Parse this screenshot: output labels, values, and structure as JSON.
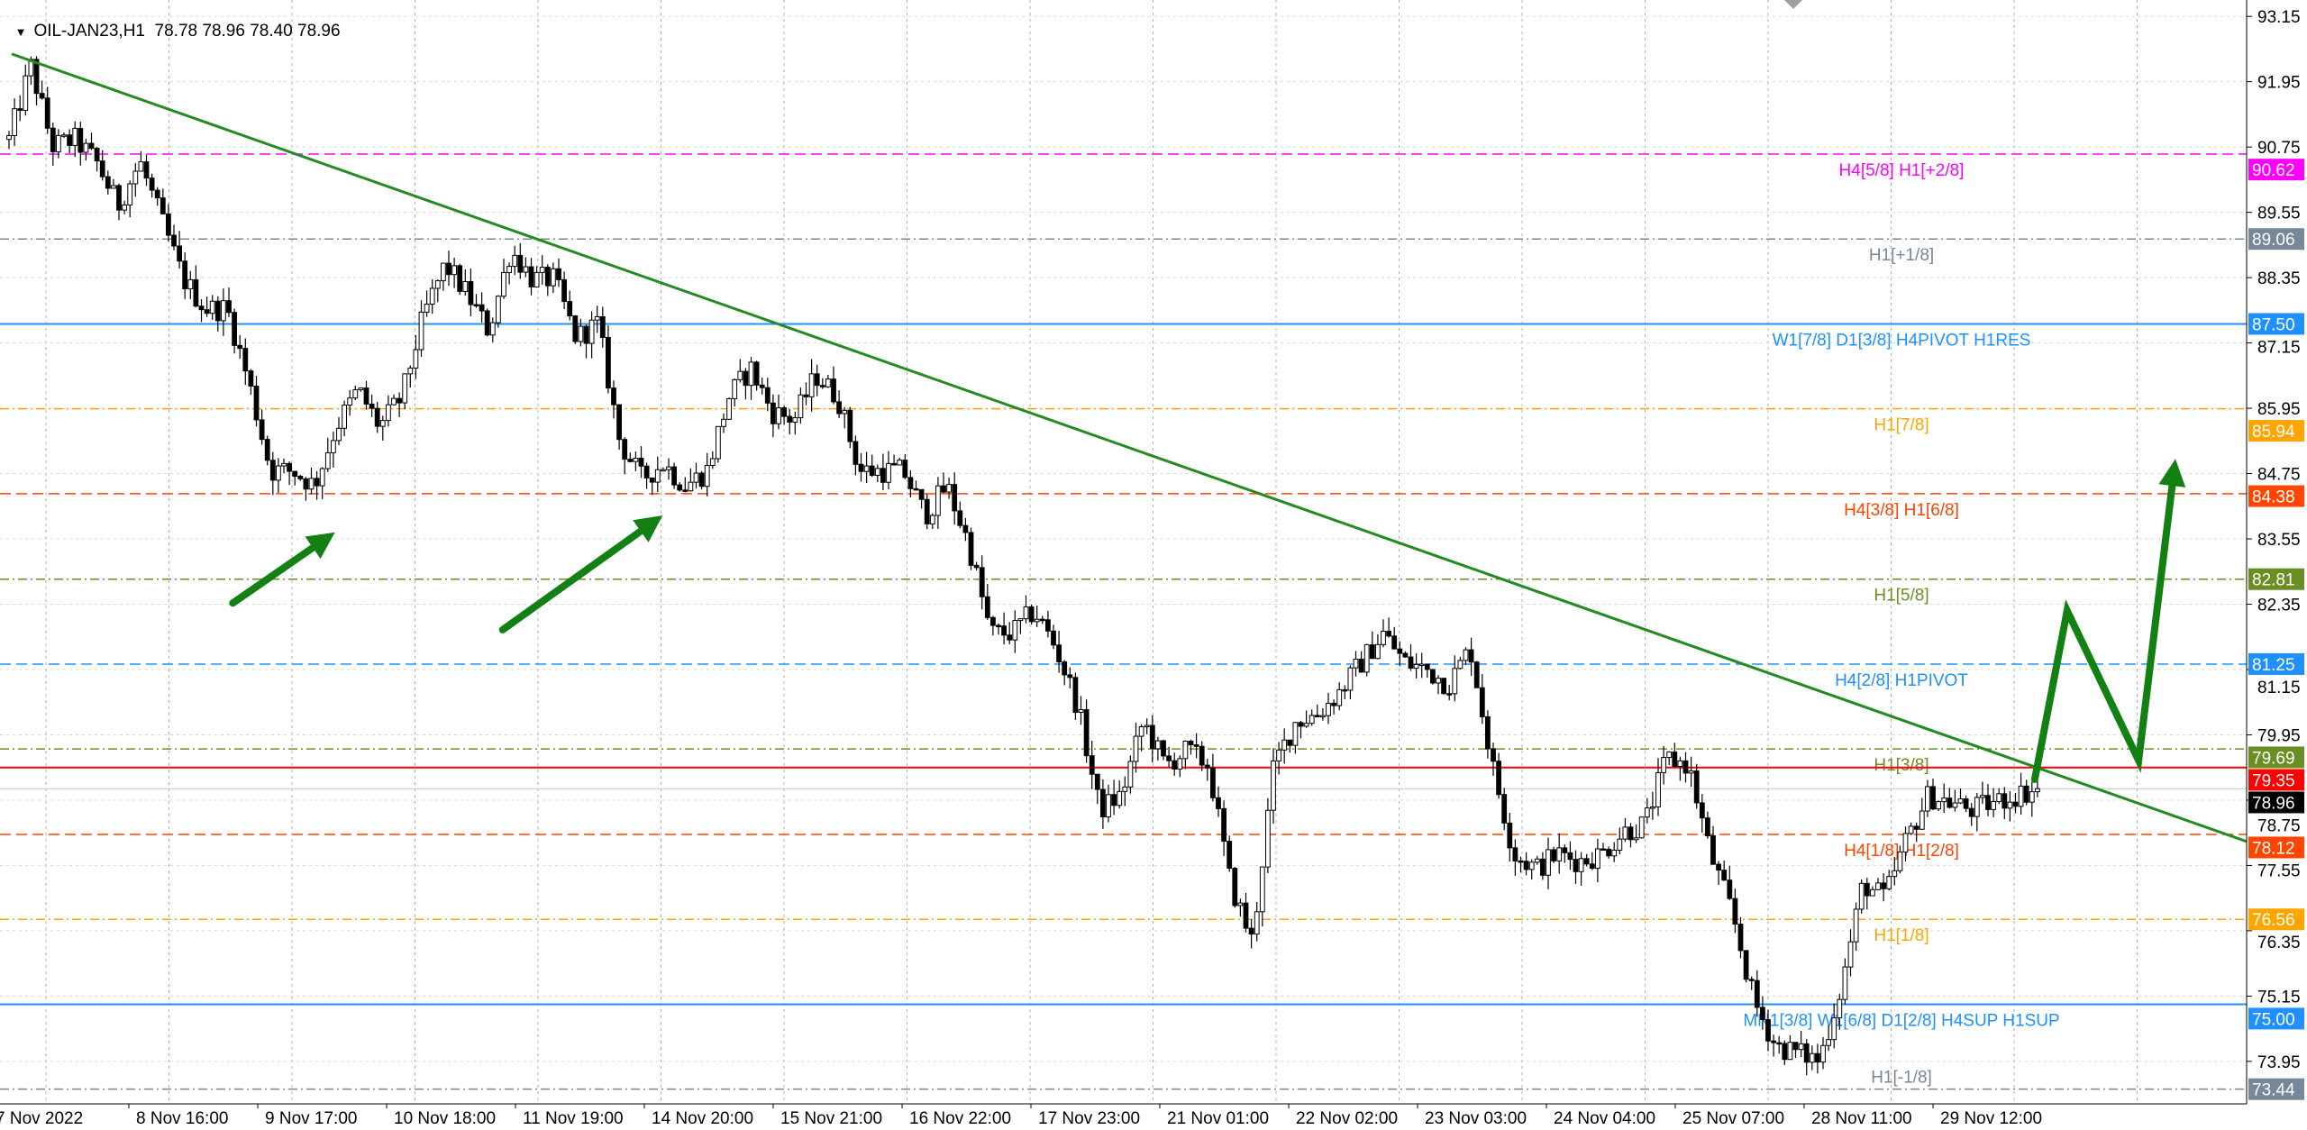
{
  "header": {
    "dropdown_icon": "triangle-down-icon",
    "symbol_label": "OIL-JAN23,H1",
    "ohlc": "78.78 78.96 78.40 78.96"
  },
  "chart_data": {
    "type": "candlestick",
    "timeframe": "H1",
    "y_ticks": [
      "93.15",
      "91.95",
      "90.75",
      "89.55",
      "88.35",
      "87.15",
      "85.95",
      "84.75",
      "83.55",
      "82.35",
      "81.15",
      "79.95",
      "78.75",
      "77.55",
      "76.35",
      "75.15",
      "73.95"
    ],
    "x_labels": [
      "7 Nov 2022",
      "8 Nov 16:00",
      "9 Nov 17:00",
      "10 Nov 18:00",
      "11 Nov 19:00",
      "14 Nov 20:00",
      "15 Nov 21:00",
      "16 Nov 22:00",
      "17 Nov 23:00",
      "21 Nov 01:00",
      "22 Nov 02:00",
      "23 Nov 03:00",
      "24 Nov 04:00",
      "25 Nov 07:00",
      "28 Nov 11:00",
      "29 Nov 12:00"
    ],
    "grid": true,
    "bar_count": 370,
    "close_path": [
      90.89,
      92.24,
      90.76,
      90.89,
      90.48,
      89.67,
      90.48,
      89.4,
      88.32,
      87.78,
      87.78,
      86.42,
      84.8,
      84.8,
      84.53,
      85.61,
      86.29,
      85.61,
      86.15,
      87.64,
      88.59,
      88.05,
      87.37,
      88.86,
      88.32,
      88.32,
      87.24,
      87.51,
      85.34,
      84.66,
      84.93,
      84.53,
      84.8,
      86.15,
      86.69,
      85.88,
      85.75,
      86.56,
      86.15,
      84.8,
      84.8,
      84.8,
      83.99,
      84.53,
      83.45,
      81.82,
      81.82,
      82.23,
      81.55,
      80.47,
      78.57,
      78.84,
      80.2,
      79.39,
      79.66,
      79.39,
      77.22,
      76.14,
      79.39,
      80.2,
      80.33,
      80.74,
      81.28,
      81.82,
      81.28,
      81.15,
      80.87,
      81.55,
      79.39,
      77.76,
      77.49,
      77.76,
      77.63,
      77.76,
      78.17,
      78.3,
      79.52,
      79.39,
      77.76,
      76.68,
      75.05,
      74.24,
      74.11,
      73.97,
      75.32,
      77.22,
      76.95,
      78.03,
      78.84,
      78.71,
      78.57,
      78.71,
      78.84,
      78.96
    ],
    "current_price": {
      "value": 78.96,
      "label": "78.96",
      "color": "#000000"
    },
    "levels": [
      {
        "price": 90.62,
        "value_label": "90.62",
        "label": "H4[5/8] H1[+2/8]",
        "color": "#ff00ff",
        "style": "dashed"
      },
      {
        "price": 89.06,
        "value_label": "89.06",
        "label": "H1[+1/8]",
        "color": "#778899",
        "style": "dashdot"
      },
      {
        "price": 87.5,
        "value_label": "87.50",
        "label": "W1[7/8] D1[3/8] H4PIVOT H1RES",
        "color": "#1e90ff",
        "style": "solid"
      },
      {
        "price": 85.94,
        "value_label": "85.94",
        "label": "H1[7/8]",
        "color": "#ffa500",
        "style": "dashdot"
      },
      {
        "price": 84.38,
        "value_label": "84.38",
        "label": "H4[3/8] H1[6/8]",
        "color": "#ff4500",
        "style": "dashed"
      },
      {
        "price": 82.81,
        "value_label": "82.81",
        "label": "H1[5/8]",
        "color": "#6b8e23",
        "style": "dashdot"
      },
      {
        "price": 81.25,
        "value_label": "81.25",
        "label": "H4[2/8] H1PIVOT",
        "color": "#1e90ff",
        "style": "dashed"
      },
      {
        "price": 79.69,
        "value_label": "79.69",
        "label": "H1[3/8]",
        "color": "#6b8e23",
        "style": "dashdot"
      },
      {
        "price": 79.35,
        "value_label": "79.35",
        "label": "",
        "color": "#ff0000",
        "style": "solid"
      },
      {
        "price": 78.12,
        "value_label": "78.12",
        "label": "H4[1/8] H1[2/8]",
        "color": "#ff4500",
        "style": "dashed"
      },
      {
        "price": 76.56,
        "value_label": "76.56",
        "label": "H1[1/8]",
        "color": "#ffa500",
        "style": "dashdot"
      },
      {
        "price": 75.0,
        "value_label": "75.00",
        "label": "MN1[3/8] W1[6/8] D1[2/8] H4SUP H1SUP",
        "color": "#1e90ff",
        "style": "solid"
      },
      {
        "price": 73.44,
        "value_label": "73.44",
        "label": "H1[-1/8]",
        "color": "#778899",
        "style": "dashdot"
      }
    ],
    "trend_line": {
      "price_at_left": 92.46,
      "price_at_right": 77.99,
      "color": "#228b22"
    },
    "arrows": [
      {
        "points": [
          [
            40.7,
            82.37
          ],
          [
            59.3,
            83.67
          ]
        ],
        "color": "#138013"
      },
      {
        "points": [
          [
            89.8,
            81.88
          ],
          [
            118.9,
            83.98
          ]
        ],
        "color": "#138013"
      },
      {
        "points": [
          [
            368.5,
            79.13
          ],
          [
            374.4,
            82.23
          ],
          [
            387.4,
            79.48
          ],
          [
            394.1,
            85.02
          ]
        ],
        "color": "#138013"
      }
    ]
  }
}
